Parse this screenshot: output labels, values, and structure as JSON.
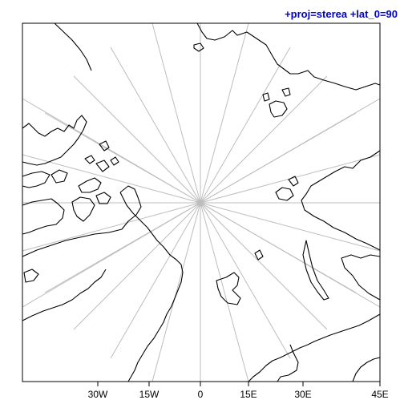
{
  "title": "+proj=sterea +lat_0=90",
  "colors": {
    "title": "#0000cc",
    "graticule": "#bdbdbd",
    "coast": "#000000",
    "frame": "#000000"
  },
  "x_axis": {
    "ticks": [
      {
        "label": "30W"
      },
      {
        "label": "15W"
      },
      {
        "label": "0"
      },
      {
        "label": "15E"
      },
      {
        "label": "30E"
      },
      {
        "label": "45E"
      }
    ]
  }
}
